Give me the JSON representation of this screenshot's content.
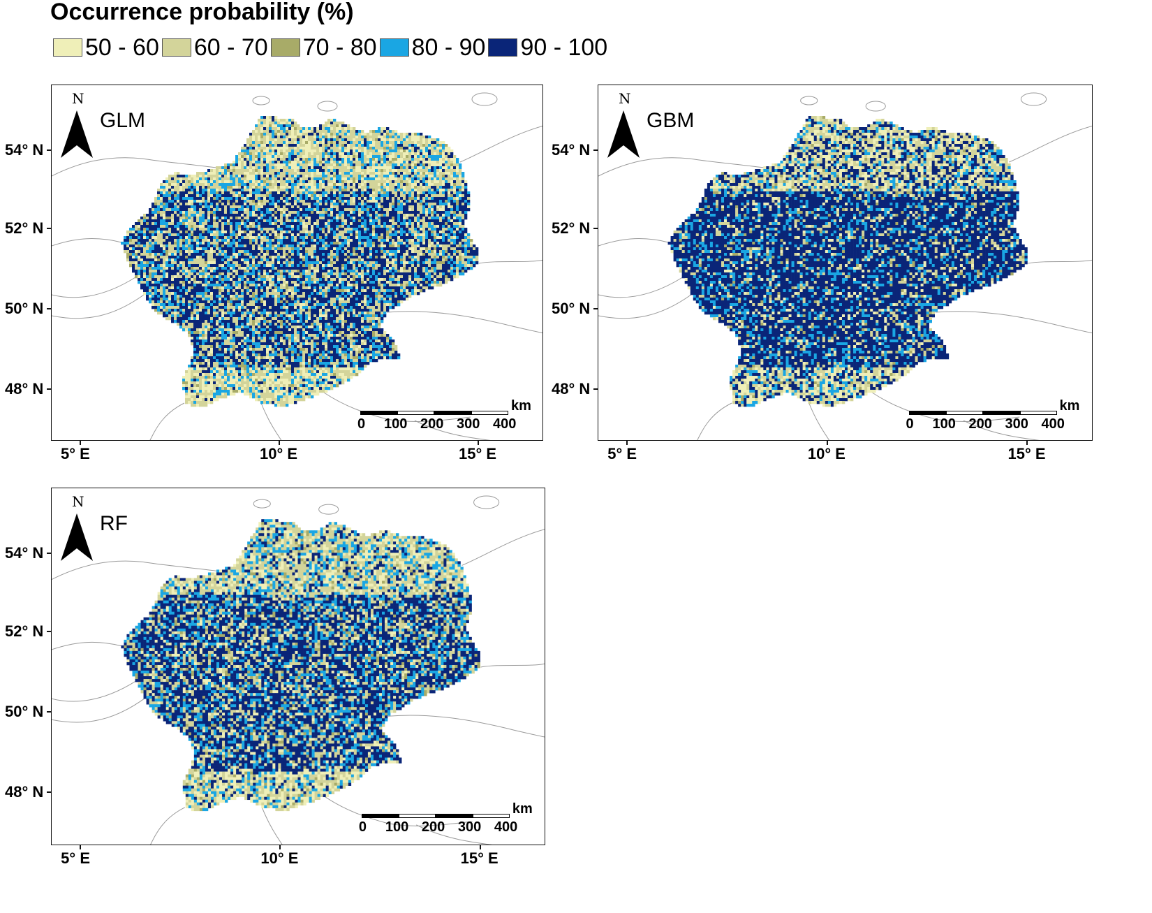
{
  "legend": {
    "title": "Occurrence probability (%)",
    "classes": [
      {
        "label": "50 - 60",
        "color": "#efefb8"
      },
      {
        "label": "60 - 70",
        "color": "#d3d49a"
      },
      {
        "label": "70 - 80",
        "color": "#a8ab68"
      },
      {
        "label": "80 - 90",
        "color": "#1aa6e3"
      },
      {
        "label": "90 - 100",
        "color": "#0a2578"
      }
    ]
  },
  "lat_labels": [
    "54° N",
    "52° N",
    "50° N",
    "48° N"
  ],
  "lon_labels": [
    "5° E",
    "10° E",
    "15° E"
  ],
  "scale": {
    "unit": "km",
    "ticks": [
      "0",
      "100",
      "200",
      "300",
      "400"
    ]
  },
  "north_label": "N",
  "panels": [
    {
      "model": "GLM"
    },
    {
      "model": "GBM"
    },
    {
      "model": "RF"
    }
  ]
}
